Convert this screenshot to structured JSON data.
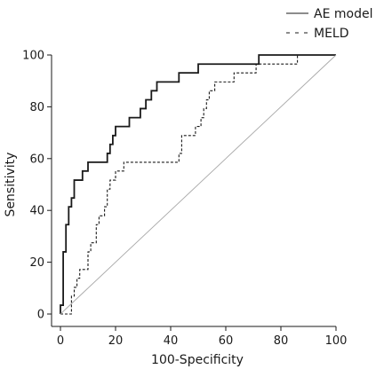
{
  "chart_data": {
    "type": "line",
    "xlabel": "100-Specificity",
    "ylabel": "Sensitivity",
    "xlim": [
      0,
      100
    ],
    "ylim": [
      0,
      100
    ],
    "x_ticks": [
      0,
      20,
      40,
      60,
      80,
      100
    ],
    "y_ticks": [
      0,
      20,
      40,
      60,
      80,
      100
    ],
    "grid": false,
    "legend_position": "top-right",
    "series": [
      {
        "name": "AE model",
        "style": "solid",
        "color": "#1a1a1a",
        "points": [
          [
            0,
            0
          ],
          [
            0,
            3.4
          ],
          [
            1,
            3.4
          ],
          [
            1,
            24
          ],
          [
            2,
            24
          ],
          [
            2,
            34.5
          ],
          [
            3,
            34.5
          ],
          [
            3,
            41.4
          ],
          [
            4,
            41.4
          ],
          [
            4,
            44.8
          ],
          [
            5,
            44.8
          ],
          [
            5,
            51.7
          ],
          [
            8,
            51.7
          ],
          [
            8,
            55.2
          ],
          [
            10,
            55.2
          ],
          [
            10,
            58.6
          ],
          [
            17,
            58.6
          ],
          [
            17,
            62
          ],
          [
            18,
            62
          ],
          [
            18,
            65.5
          ],
          [
            19,
            65.5
          ],
          [
            19,
            68.9
          ],
          [
            20,
            68.9
          ],
          [
            20,
            72.4
          ],
          [
            25,
            72.4
          ],
          [
            25,
            75.8
          ],
          [
            29,
            75.8
          ],
          [
            29,
            79.3
          ],
          [
            31,
            79.3
          ],
          [
            31,
            82.7
          ],
          [
            33,
            82.7
          ],
          [
            33,
            86.2
          ],
          [
            35,
            86.2
          ],
          [
            35,
            89.6
          ],
          [
            43,
            89.6
          ],
          [
            43,
            93.1
          ],
          [
            50,
            93.1
          ],
          [
            50,
            96.5
          ],
          [
            72,
            96.5
          ],
          [
            72,
            100
          ],
          [
            100,
            100
          ]
        ]
      },
      {
        "name": "MELD",
        "style": "dashed",
        "color": "#1a1a1a",
        "points": [
          [
            0,
            0
          ],
          [
            4,
            0
          ],
          [
            4,
            6.9
          ],
          [
            5,
            6.9
          ],
          [
            5,
            10.3
          ],
          [
            6,
            10.3
          ],
          [
            6,
            13.8
          ],
          [
            7,
            13.8
          ],
          [
            7,
            17.2
          ],
          [
            10,
            17.2
          ],
          [
            10,
            24
          ],
          [
            11,
            24
          ],
          [
            11,
            27.5
          ],
          [
            13,
            27.5
          ],
          [
            13,
            34.5
          ],
          [
            14,
            34.5
          ],
          [
            14,
            37.9
          ],
          [
            16,
            37.9
          ],
          [
            16,
            41.4
          ],
          [
            17,
            41.4
          ],
          [
            17,
            48.2
          ],
          [
            18,
            48.2
          ],
          [
            18,
            51.7
          ],
          [
            20,
            51.7
          ],
          [
            20,
            55.2
          ],
          [
            23,
            55.2
          ],
          [
            23,
            58.6
          ],
          [
            43,
            58.6
          ],
          [
            43,
            62
          ],
          [
            44,
            62
          ],
          [
            44,
            68.9
          ],
          [
            49,
            68.9
          ],
          [
            49,
            72.4
          ],
          [
            51,
            72.4
          ],
          [
            51,
            75.8
          ],
          [
            52,
            75.8
          ],
          [
            52,
            79.3
          ],
          [
            53,
            79.3
          ],
          [
            53,
            82.7
          ],
          [
            54,
            82.7
          ],
          [
            54,
            86.2
          ],
          [
            56,
            86.2
          ],
          [
            56,
            89.6
          ],
          [
            63,
            89.6
          ],
          [
            63,
            93.1
          ],
          [
            71,
            93.1
          ],
          [
            71,
            96.5
          ],
          [
            86,
            96.5
          ],
          [
            86,
            100
          ],
          [
            100,
            100
          ]
        ]
      },
      {
        "name": "",
        "style": "reference",
        "color": "#a8a8a8",
        "points": [
          [
            0,
            0
          ],
          [
            100,
            100
          ]
        ]
      }
    ]
  }
}
